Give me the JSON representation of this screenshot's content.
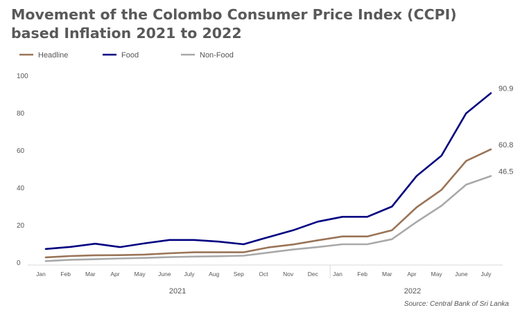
{
  "chart_data": {
    "type": "line",
    "title": "Movement of the Colombo Consumer Price Index (CCPI) based Inflation 2021 to 2022",
    "categories": [
      "Jan",
      "Feb",
      "Mar",
      "Apr",
      "May",
      "June",
      "July",
      "Aug",
      "Sep",
      "Oct",
      "Nov",
      "Dec",
      "Jan",
      "Feb",
      "Mar",
      "Apr",
      "May",
      "June",
      "July"
    ],
    "year_groups": [
      {
        "label": "2021",
        "start": 0,
        "end": 11
      },
      {
        "label": "2022",
        "start": 12,
        "end": 18
      }
    ],
    "series": [
      {
        "name": "Headline",
        "color": "#9a7457",
        "values": [
          3.0,
          3.7,
          4.1,
          4.2,
          4.5,
          5.2,
          5.7,
          5.7,
          5.7,
          8.3,
          9.9,
          12.1,
          14.2,
          14.2,
          17.5,
          29.8,
          39.1,
          54.6,
          60.8
        ],
        "end_label": "60.8"
      },
      {
        "name": "Food",
        "color": "#000080",
        "values": [
          7.5,
          8.6,
          10.3,
          8.5,
          10.5,
          12.3,
          12.3,
          11.4,
          10.0,
          13.8,
          17.5,
          22.1,
          24.7,
          24.7,
          30.2,
          46.6,
          57.4,
          80.1,
          90.9
        ],
        "end_label": "90.9"
      },
      {
        "name": "Non-Food",
        "color": "#a9a9a9",
        "values": [
          1.0,
          1.7,
          2.0,
          2.4,
          2.7,
          3.1,
          3.4,
          3.6,
          3.9,
          5.5,
          7.2,
          8.5,
          10.0,
          10.0,
          12.7,
          22.0,
          30.6,
          41.9,
          46.5
        ],
        "end_label": "46.5"
      }
    ],
    "yticks": [
      0,
      20,
      40,
      60,
      80,
      100
    ],
    "ylim": [
      0,
      100
    ],
    "grid": false,
    "legend_position": "top-left",
    "source": "Source: Central Bank of Sri Lanka"
  }
}
